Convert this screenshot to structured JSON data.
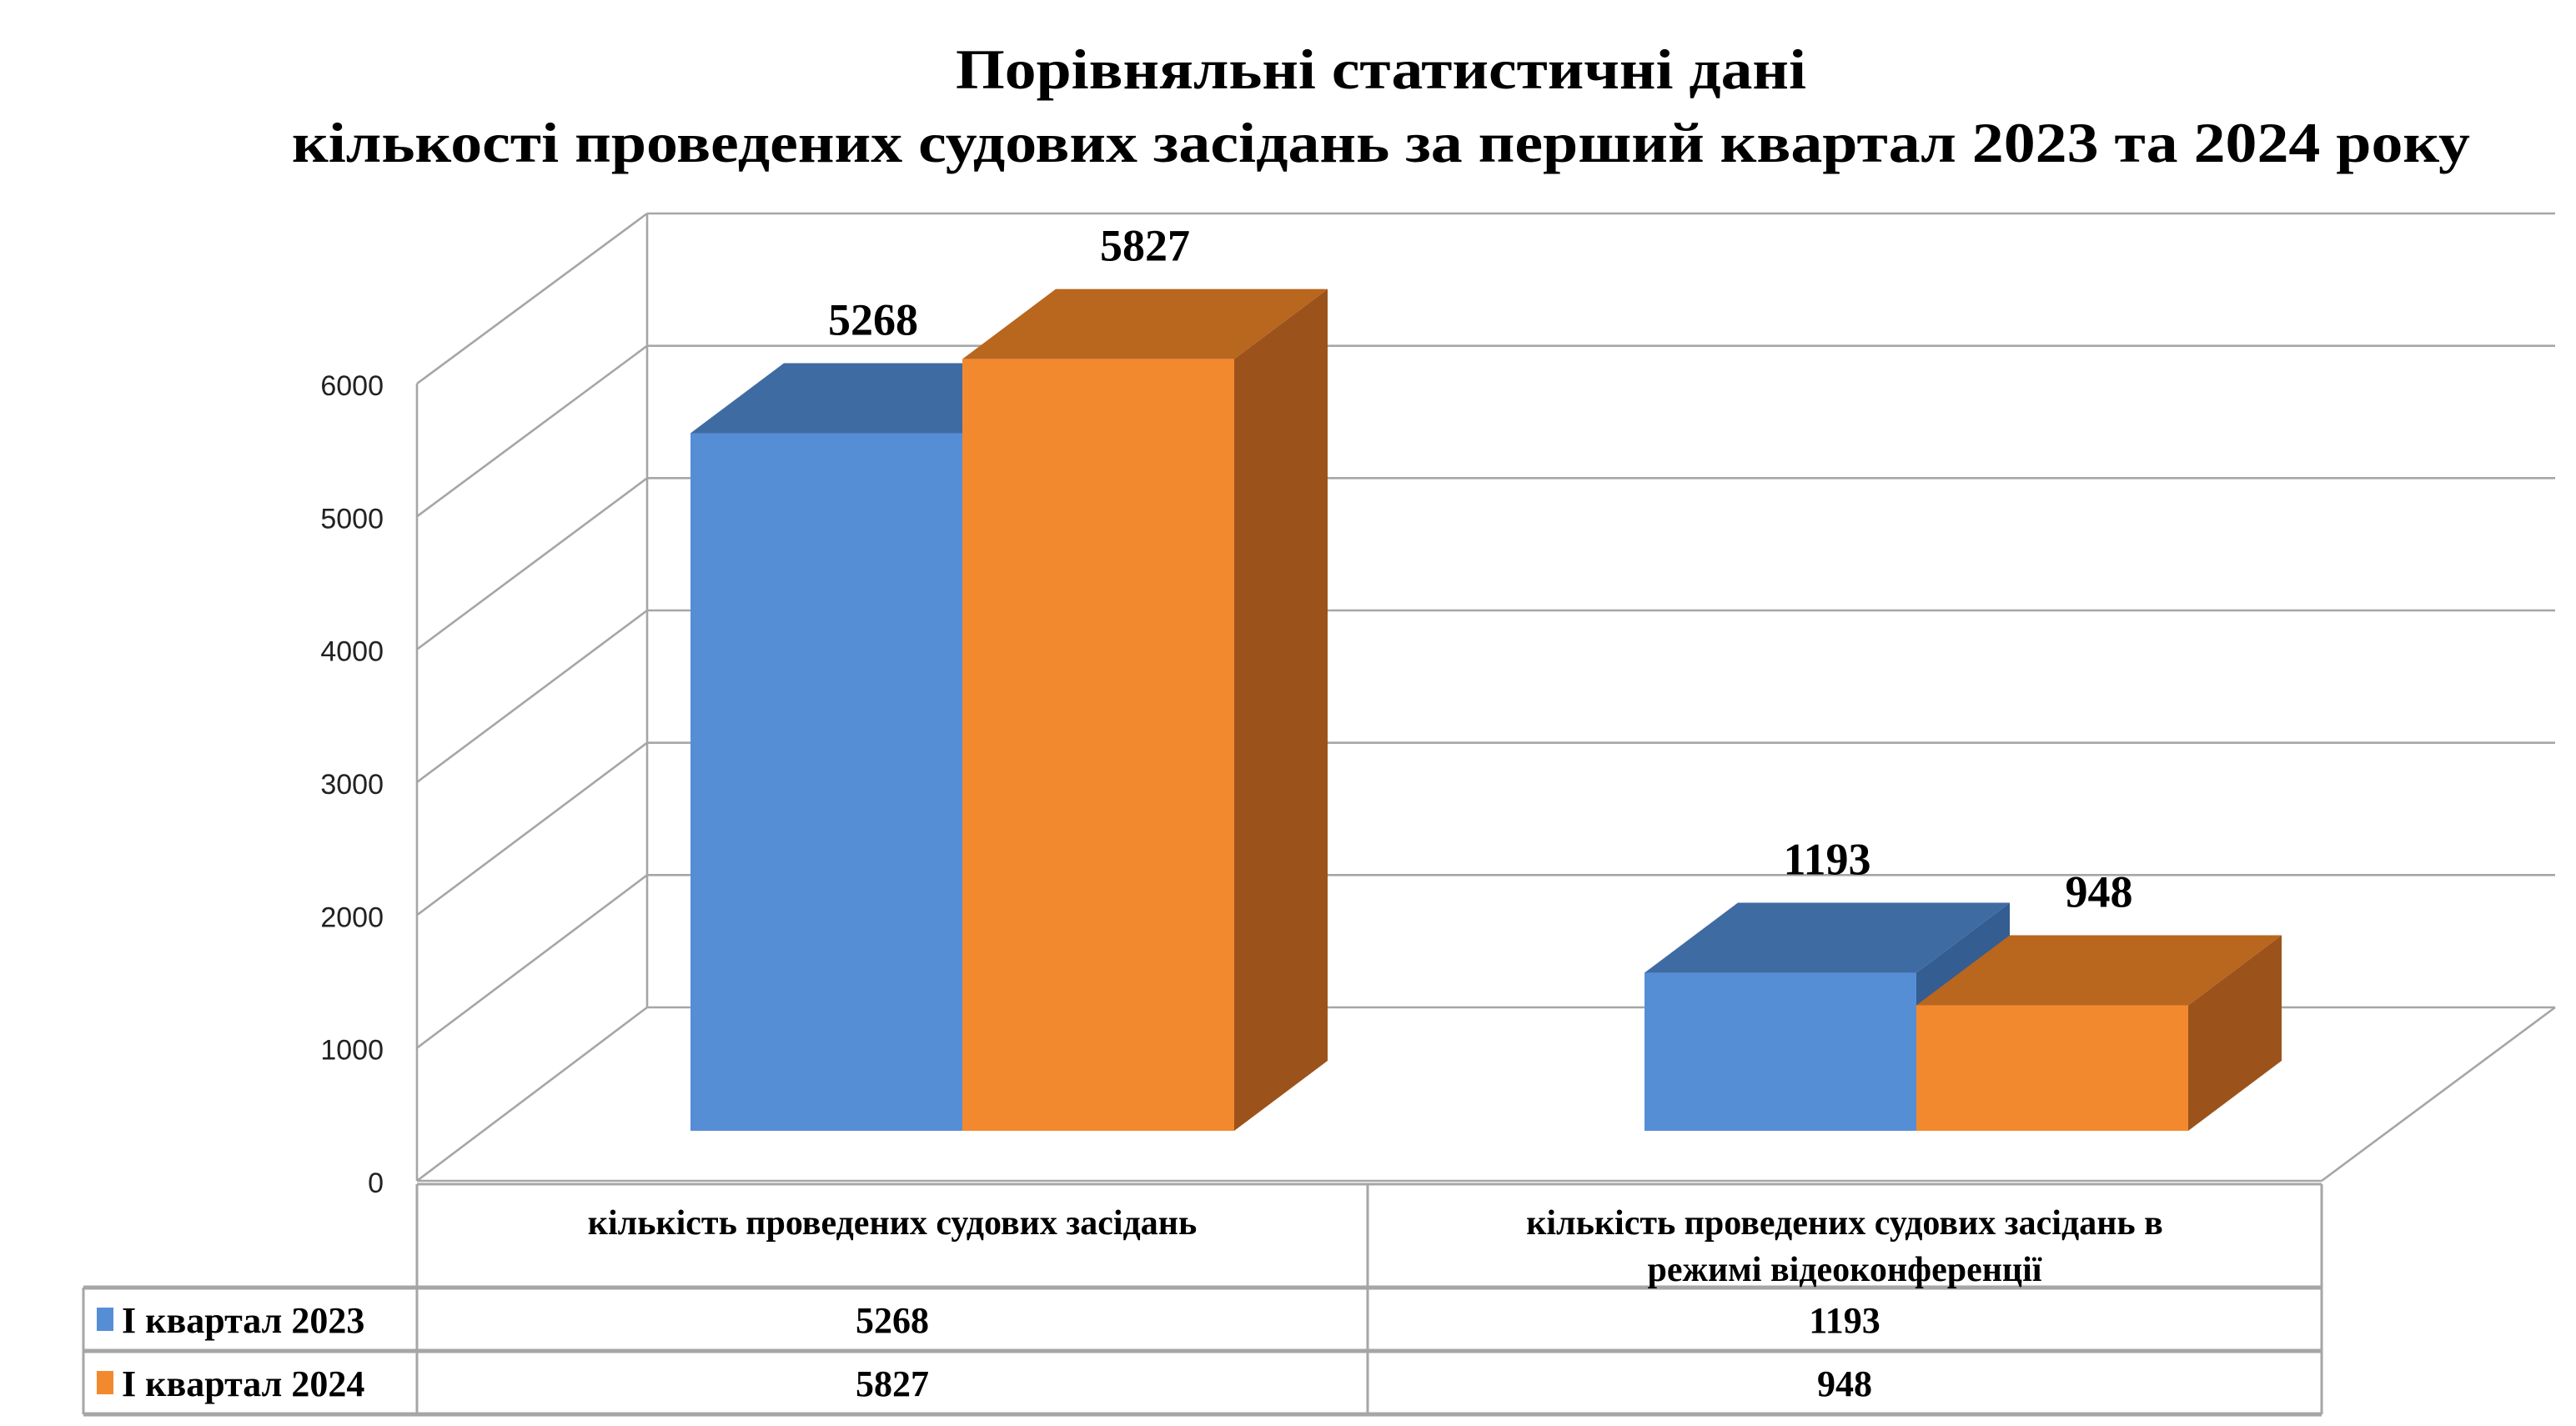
{
  "chart_data": {
    "type": "bar",
    "variant": "3d-clustered-column-with-data-table",
    "title_lines": [
      "Порівняльні статистичні дані",
      "кількості проведених судових засідань за перший квартал 2023 та 2024 року"
    ],
    "categories": [
      "кількість проведених судових засідань",
      "кількість проведених судових засідань в режимі відеоконференції"
    ],
    "category_lines": [
      [
        "кількість проведених судових засідань"
      ],
      [
        "кількість проведених судових засідань в",
        "режимі відеоконференції"
      ]
    ],
    "series": [
      {
        "name": "І квартал 2023",
        "values": [
          5268,
          1193
        ],
        "color": "#558ed5",
        "top_color": "#3f6ba3",
        "side_color": "#345d91"
      },
      {
        "name": "І квартал 2024",
        "values": [
          5827,
          948
        ],
        "color": "#f3892f",
        "top_color": "#b9661f",
        "side_color": "#9b531b"
      }
    ],
    "yticks": [
      "0",
      "1000",
      "2000",
      "3000",
      "4000",
      "5000",
      "6000"
    ],
    "ylim": [
      0,
      6000
    ],
    "grid": true,
    "legend": "data-table-left",
    "data_labels": true
  }
}
